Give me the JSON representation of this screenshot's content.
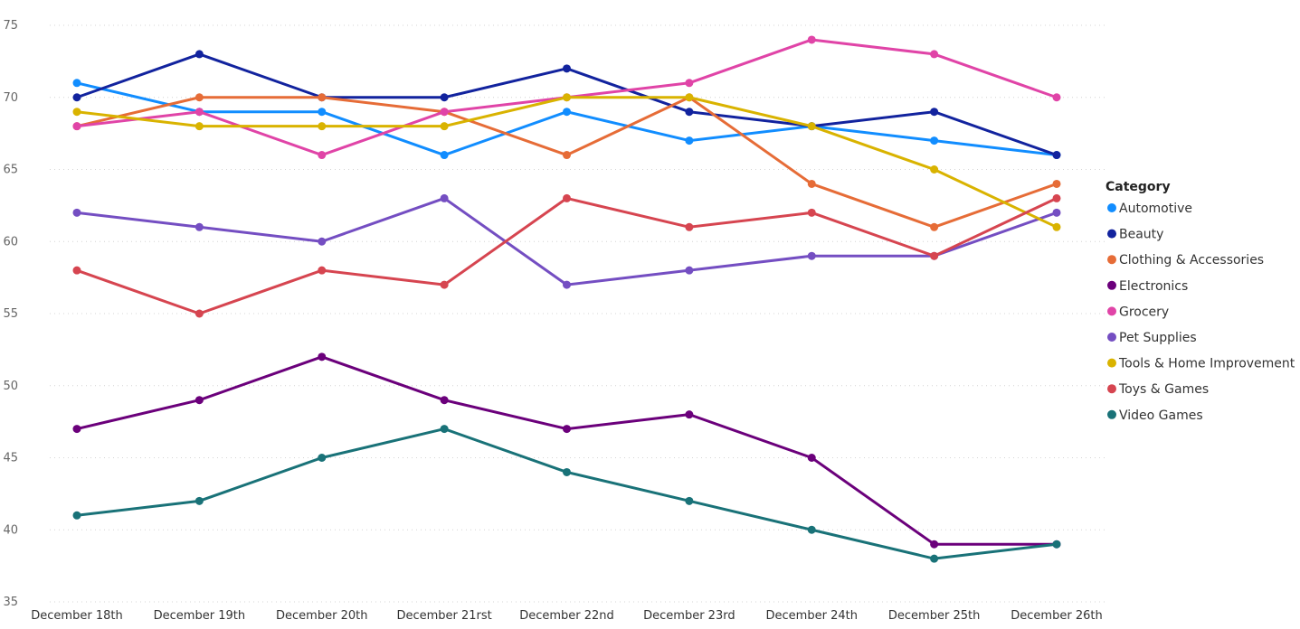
{
  "chart_data": {
    "type": "line",
    "x": [
      "December 18th",
      "December 19th",
      "December 20th",
      "December 21rst",
      "December 22nd",
      "December 23rd",
      "December 24th",
      "December 25th",
      "December 26th"
    ],
    "ylim": [
      35,
      75
    ],
    "yticks": [
      35,
      40,
      45,
      50,
      55,
      60,
      65,
      70,
      75
    ],
    "grid": true,
    "legend": {
      "title": "Category",
      "position": "right"
    },
    "series": [
      {
        "name": "Automotive",
        "color": "#118DFF",
        "values": [
          71,
          69,
          69,
          66,
          69,
          67,
          68,
          67,
          66
        ]
      },
      {
        "name": "Beauty",
        "color": "#12239E",
        "values": [
          70,
          73,
          70,
          70,
          72,
          69,
          68,
          69,
          66
        ]
      },
      {
        "name": "Clothing & Accessories",
        "color": "#E66C37",
        "values": [
          68,
          70,
          70,
          69,
          66,
          70,
          64,
          61,
          64
        ]
      },
      {
        "name": "Electronics",
        "color": "#6B007B",
        "values": [
          47,
          49,
          52,
          49,
          47,
          48,
          45,
          39,
          39
        ]
      },
      {
        "name": "Grocery",
        "color": "#E044A7",
        "values": [
          68,
          69,
          66,
          69,
          70,
          71,
          74,
          73,
          70
        ]
      },
      {
        "name": "Pet Supplies",
        "color": "#744EC2",
        "values": [
          62,
          61,
          60,
          63,
          57,
          58,
          59,
          59,
          62
        ]
      },
      {
        "name": "Tools & Home Improvement",
        "color": "#D9B300",
        "values": [
          69,
          68,
          68,
          68,
          70,
          70,
          68,
          65,
          61
        ]
      },
      {
        "name": "Toys & Games",
        "color": "#D64550",
        "values": [
          58,
          55,
          58,
          57,
          63,
          61,
          62,
          59,
          63
        ]
      },
      {
        "name": "Video Games",
        "color": "#197278",
        "values": [
          41,
          42,
          45,
          47,
          44,
          42,
          40,
          38,
          39
        ]
      }
    ]
  }
}
